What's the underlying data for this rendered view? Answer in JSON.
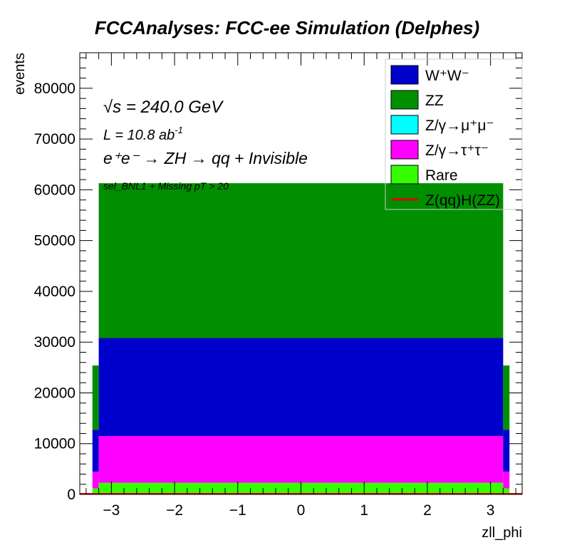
{
  "chart_data": {
    "type": "stacked-histogram",
    "title": "FCCAnalyses: FCC-ee Simulation (Delphes)",
    "xlabel": "zll_phi",
    "ylabel": "events",
    "xlim": [
      -3.5,
      3.5
    ],
    "ylim": [
      0,
      87000
    ],
    "x_ticks": [
      -3,
      -2,
      -1,
      0,
      1,
      2,
      3
    ],
    "x_tick_labels": [
      "−3",
      "−2",
      "−1",
      "0",
      "1",
      "2",
      "3"
    ],
    "y_ticks": [
      0,
      10000,
      20000,
      30000,
      40000,
      50000,
      60000,
      70000,
      80000
    ],
    "y_tick_labels": [
      "0",
      "10000",
      "20000",
      "30000",
      "40000",
      "50000",
      "60000",
      "70000",
      "80000"
    ],
    "annotations": {
      "sqrt_s_symbol": "√s",
      "sqrt_s_value": " = 240.0 GeV",
      "lumi": "L = 10.8 ab",
      "lumi_exp": "-1",
      "process": "e⁺e⁻ → ZH → qq + Invisible",
      "selection": "sel_BNL1 + Missing pT > 20"
    },
    "legend": {
      "position": "top-right",
      "entries": [
        {
          "label": "W⁺W⁻",
          "color": "#0000cc",
          "style": "fill"
        },
        {
          "label": "ZZ",
          "color": "#008f00",
          "style": "fill"
        },
        {
          "label": "Z/γ→μ⁺μ⁻",
          "color": "#00ffff",
          "style": "fill"
        },
        {
          "label": "Z/γ→τ⁺τ⁻",
          "color": "#ff00ff",
          "style": "fill"
        },
        {
          "label": "Rare",
          "color": "#33ff00",
          "style": "fill"
        },
        {
          "label": "Z(qq)H(ZZ)",
          "color": "#dd0000",
          "style": "line"
        }
      ]
    },
    "bins": {
      "edges": [
        -3.3,
        -3.2,
        3.2,
        3.3
      ],
      "note": "central region -3.2..3.2 uniform; narrow edge bins at both ends"
    },
    "series": [
      {
        "name": "Rare",
        "color": "#33ff00",
        "edge_value": 1200,
        "central_value": 2300
      },
      {
        "name": "Z/γ→τ⁺τ⁻",
        "color": "#ff00ff",
        "edge_value": 3300,
        "central_value": 9200
      },
      {
        "name": "Z/γ→μ⁺μ⁻",
        "color": "#00ffff",
        "edge_value": 0,
        "central_value": 0
      },
      {
        "name": "W⁺W⁻",
        "color": "#0000cc",
        "edge_value": 8200,
        "central_value": 19300
      },
      {
        "name": "ZZ",
        "color": "#008f00",
        "edge_value": 12700,
        "central_value": 30500
      }
    ],
    "stack_totals": {
      "edge": 25400,
      "central": 61300
    },
    "signal": {
      "name": "Z(qq)H(ZZ)",
      "color": "#dd0000",
      "value": 0
    }
  }
}
